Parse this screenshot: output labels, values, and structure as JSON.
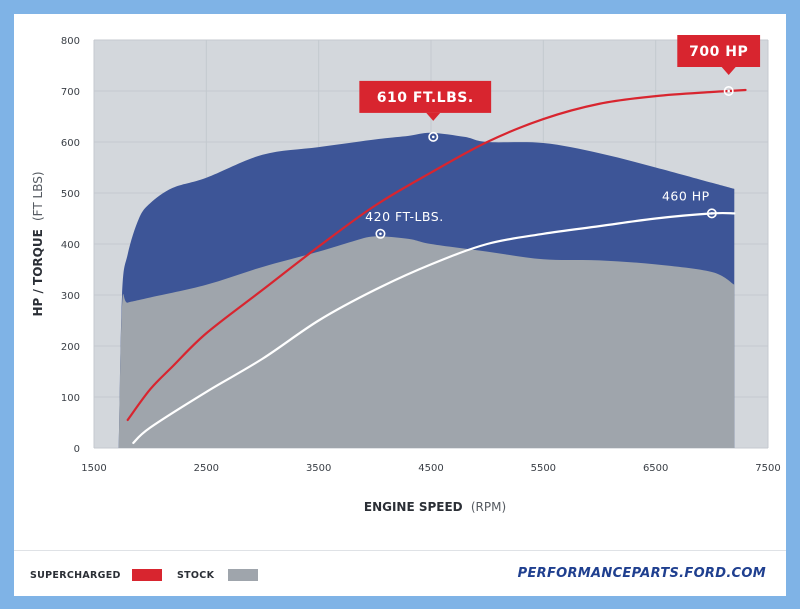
{
  "colors": {
    "background_outer": "#7fb3e6",
    "plot_background": "#d3d7dc",
    "supercharged_torque_fill": "#3d5597",
    "stock_torque_fill": "#9fa5ac",
    "supercharged_line": "#d8252f",
    "stock_line": "#ffffff",
    "callout_red": "#d8252f",
    "brand_blue": "#1f3f8f"
  },
  "chart_data": {
    "type": "area",
    "xlabel": "ENGINE SPEED",
    "xlabel_unit": "(RPM)",
    "ylabel": "HP / TORQUE",
    "ylabel_unit": "(FT LBS)",
    "xlim": [
      1500,
      7500
    ],
    "ylim": [
      0,
      800
    ],
    "x_ticks": [
      1500,
      2500,
      3500,
      4500,
      5500,
      6500,
      7500
    ],
    "y_ticks": [
      0,
      100,
      200,
      300,
      400,
      500,
      600,
      700,
      800
    ],
    "grid": true,
    "series": [
      {
        "name": "SUPERCHARGED",
        "metric": "torque",
        "style": "area",
        "x": [
          1720,
          1750,
          1800,
          1900,
          2000,
          2200,
          2500,
          3000,
          3500,
          4000,
          4300,
          4500,
          4800,
          5000,
          5500,
          6000,
          6500,
          7000,
          7200
        ],
        "y": [
          0,
          300,
          380,
          450,
          480,
          510,
          530,
          575,
          590,
          605,
          612,
          618,
          610,
          600,
          598,
          578,
          550,
          520,
          508
        ]
      },
      {
        "name": "STOCK",
        "metric": "torque",
        "style": "area",
        "x": [
          1720,
          1750,
          1800,
          2000,
          2500,
          3000,
          3500,
          3800,
          4000,
          4300,
          4500,
          5000,
          5500,
          6000,
          6500,
          7000,
          7200
        ],
        "y": [
          0,
          280,
          285,
          295,
          320,
          355,
          385,
          405,
          415,
          410,
          400,
          385,
          370,
          368,
          360,
          345,
          320
        ]
      },
      {
        "name": "SUPERCHARGED",
        "metric": "horsepower",
        "style": "line",
        "x": [
          1800,
          2000,
          2200,
          2500,
          3000,
          3500,
          4000,
          4500,
          5000,
          5500,
          6000,
          6500,
          7000,
          7150,
          7300
        ],
        "y": [
          55,
          115,
          160,
          225,
          310,
          395,
          475,
          540,
          600,
          645,
          675,
          690,
          698,
          700,
          702
        ]
      },
      {
        "name": "STOCK",
        "metric": "horsepower",
        "style": "line",
        "x": [
          1850,
          2000,
          2500,
          3000,
          3500,
          4000,
          4500,
          5000,
          5500,
          6000,
          6500,
          7000,
          7200
        ],
        "y": [
          10,
          40,
          110,
          175,
          250,
          310,
          360,
          400,
          420,
          435,
          450,
          460,
          460
        ]
      }
    ],
    "markers": [
      {
        "x": 4520,
        "y": 610
      },
      {
        "x": 7150,
        "y": 700
      },
      {
        "x": 4050,
        "y": 420
      },
      {
        "x": 7000,
        "y": 460
      }
    ],
    "annotations": [
      {
        "text": "610 FT.LBS.",
        "style": "callout",
        "x": 4520,
        "y": 610
      },
      {
        "text": "700 HP",
        "style": "callout",
        "x": 7150,
        "y": 700
      },
      {
        "text": "420 FT-LBS.",
        "style": "label",
        "x": 4050,
        "y": 420
      },
      {
        "text": "460 HP",
        "style": "label",
        "x": 7000,
        "y": 460
      }
    ]
  },
  "legend": {
    "items": [
      {
        "label": "SUPERCHARGED",
        "color": "#d8252f"
      },
      {
        "label": "STOCK",
        "color": "#9fa5ac"
      }
    ]
  },
  "brand": {
    "text": "PERFORMANCEPARTS.FORD.COM"
  }
}
